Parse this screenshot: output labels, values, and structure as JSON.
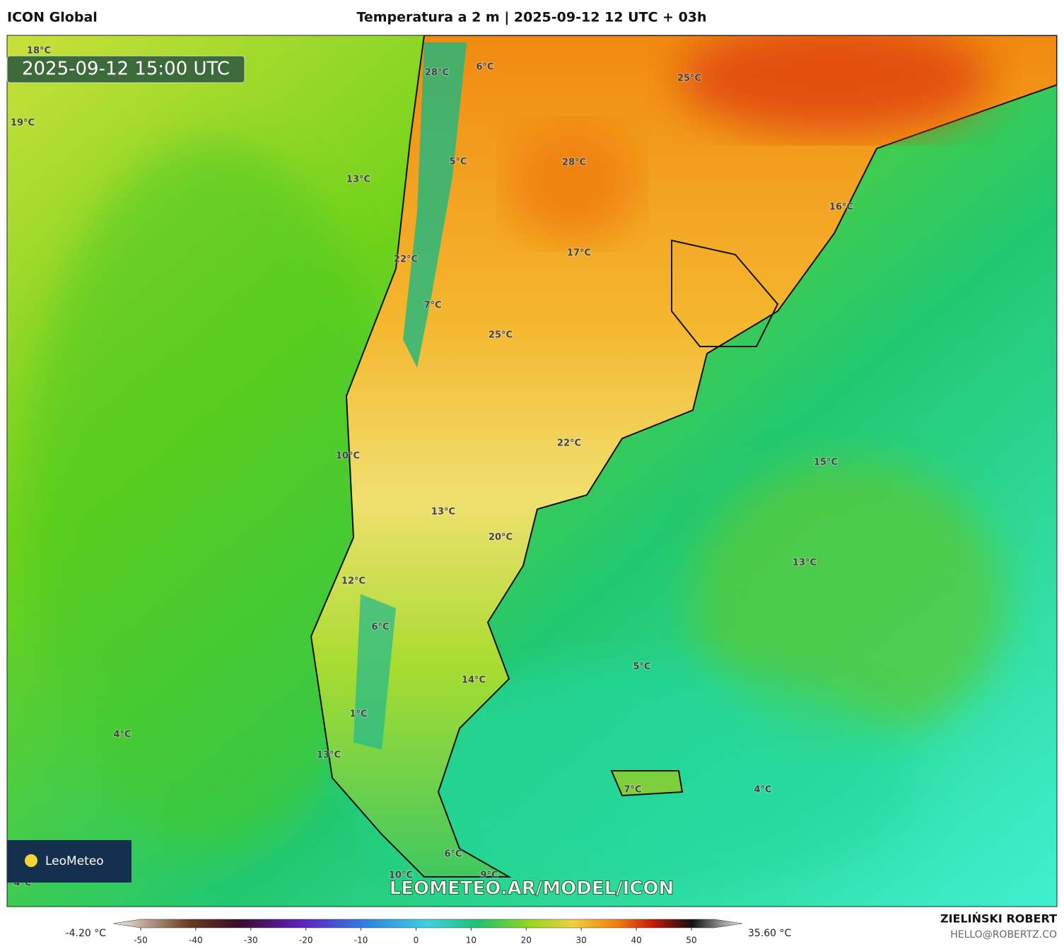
{
  "header": {
    "model": "ICON Global",
    "title": "Temperatura a 2 m | 2025-09-12 12 UTC + 03h"
  },
  "timestamp": "2025-09-12 15:00 UTC",
  "labels": [
    "18°C",
    "19°C",
    "28°C",
    "6°C",
    "25°C",
    "28°C",
    "5°C",
    "13°C",
    "16°C",
    "22°C",
    "17°C",
    "7°C",
    "25°C",
    "10°C",
    "22°C",
    "15°C",
    "13°C",
    "20°C",
    "13°C",
    "12°C",
    "6°C",
    "5°C",
    "14°C",
    "4°C",
    "1°C",
    "13°C",
    "7°C",
    "4°C",
    "6°C",
    "10°C",
    "9°C",
    "4°C"
  ],
  "logo": "LeoMeteo",
  "watermark": "LEOMETEO.AR/MODEL/ICON",
  "colorbar": {
    "min_label": "-4.20 °C",
    "max_label": "35.60 °C",
    "ticks": [
      -50,
      -40,
      -30,
      -20,
      -10,
      0,
      10,
      20,
      30,
      40,
      50
    ]
  },
  "credit": {
    "author": "ZIELIŃSKI ROBERT",
    "contact": "HELLO@ROBERTZ.CO"
  }
}
